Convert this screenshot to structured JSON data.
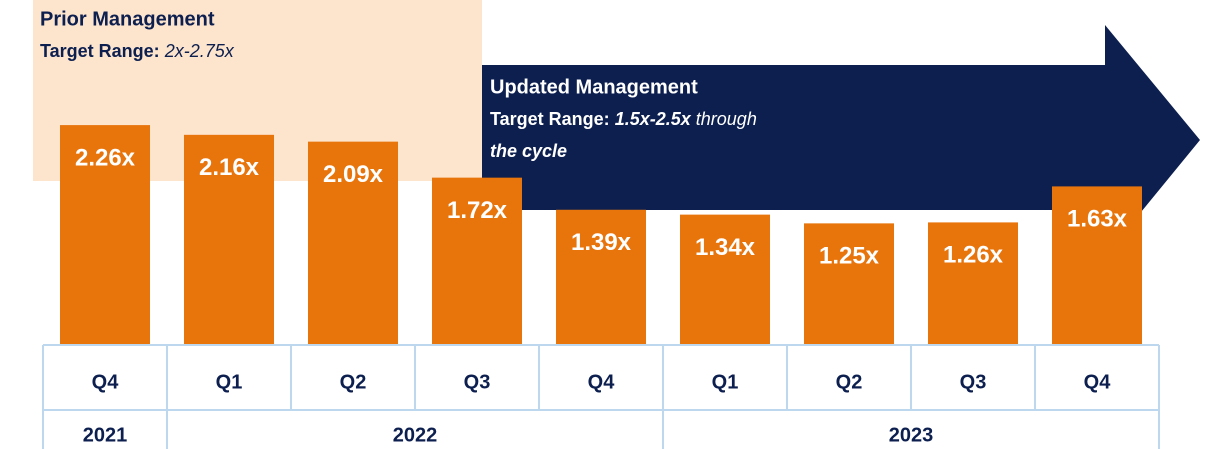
{
  "chart_data": {
    "type": "bar",
    "groups": [
      {
        "label": "2021",
        "categories": [
          "Q4"
        ]
      },
      {
        "label": "2022",
        "categories": [
          "Q1",
          "Q2",
          "Q3",
          "Q4"
        ]
      },
      {
        "label": "2023",
        "categories": [
          "Q1",
          "Q2",
          "Q3",
          "Q4"
        ]
      }
    ],
    "values": [
      2.26,
      2.16,
      2.09,
      1.72,
      1.39,
      1.34,
      1.25,
      1.26,
      1.63
    ],
    "value_labels": [
      "2.26x",
      "2.16x",
      "2.09x",
      "1.72x",
      "1.39x",
      "1.34x",
      "1.25x",
      "1.26x",
      "1.63x"
    ],
    "color": "#e8740c",
    "annotations": [
      {
        "title": "Prior Management",
        "label": "Target Range:",
        "range": "2x-2.75x"
      },
      {
        "title": "Updated Management",
        "label": "Target Range:",
        "range": "1.5x-2.5x",
        "note": "through",
        "note2": "the cycle"
      }
    ]
  }
}
